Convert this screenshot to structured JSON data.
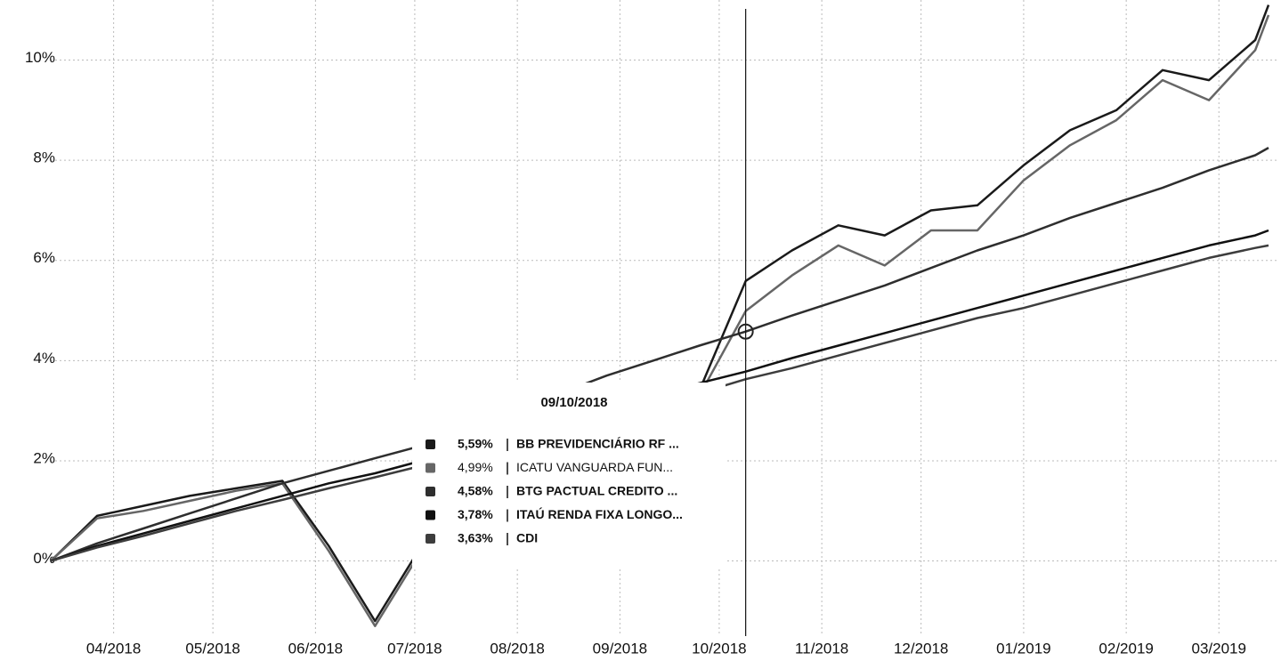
{
  "chart_data": {
    "type": "line",
    "x": [
      "13/03/2018",
      "27/03/2018",
      "10/04/2018",
      "24/04/2018",
      "08/05/2018",
      "22/05/2018",
      "05/06/2018",
      "19/06/2018",
      "03/07/2018",
      "17/07/2018",
      "31/07/2018",
      "14/08/2018",
      "28/08/2018",
      "11/09/2018",
      "25/09/2018",
      "09/10/2018",
      "23/10/2018",
      "06/11/2018",
      "20/11/2018",
      "04/12/2018",
      "18/12/2018",
      "01/01/2019",
      "15/01/2019",
      "29/01/2019",
      "12/02/2019",
      "26/02/2019",
      "12/03/2019",
      "16/03/2019"
    ],
    "series": [
      {
        "name": "BB PREVIDENCIÁRIO RF ...",
        "color": "#1a1a1a",
        "values": [
          0,
          0.9,
          1.1,
          1.3,
          1.45,
          1.6,
          0.3,
          -1.2,
          0.3,
          1.0,
          1.8,
          1.5,
          2.0,
          2.6,
          3.4,
          5.59,
          6.2,
          6.7,
          6.5,
          7.0,
          7.1,
          7.9,
          8.6,
          9.0,
          9.8,
          9.6,
          10.4,
          11.1
        ]
      },
      {
        "name": "ICATU VANGUARDA FUN...",
        "color": "#666666",
        "values": [
          0,
          0.85,
          1.0,
          1.2,
          1.4,
          1.55,
          0.2,
          -1.3,
          0.2,
          0.9,
          1.6,
          1.3,
          1.8,
          2.4,
          3.3,
          4.99,
          5.7,
          6.3,
          5.9,
          6.6,
          6.6,
          7.6,
          8.3,
          8.8,
          9.6,
          9.2,
          10.2,
          10.9
        ]
      },
      {
        "name": "BTG PACTUAL CREDITO ...",
        "color": "#2e2e2e",
        "values": [
          0,
          0.35,
          0.65,
          0.95,
          1.25,
          1.55,
          1.8,
          2.05,
          2.3,
          2.65,
          3.0,
          3.35,
          3.7,
          4.0,
          4.3,
          4.58,
          4.9,
          5.2,
          5.5,
          5.85,
          6.2,
          6.5,
          6.85,
          7.15,
          7.45,
          7.8,
          8.1,
          8.25
        ]
      },
      {
        "name": "ITAÚ RENDA FIXA LONGO...",
        "color": "#111111",
        "values": [
          0,
          0.3,
          0.55,
          0.8,
          1.05,
          1.3,
          1.55,
          1.75,
          2.0,
          2.25,
          2.5,
          2.8,
          3.05,
          3.3,
          3.55,
          3.78,
          4.05,
          4.3,
          4.55,
          4.8,
          5.05,
          5.3,
          5.55,
          5.8,
          6.05,
          6.3,
          6.5,
          6.6
        ]
      },
      {
        "name": "CDI",
        "color": "#3d3d3d",
        "values": [
          0,
          0.27,
          0.5,
          0.75,
          1.0,
          1.22,
          1.45,
          1.67,
          1.9,
          2.12,
          2.35,
          2.6,
          2.85,
          3.1,
          3.35,
          3.63,
          3.85,
          4.1,
          4.35,
          4.6,
          4.85,
          5.05,
          5.3,
          5.55,
          5.8,
          6.05,
          6.25,
          6.3
        ]
      }
    ],
    "xlim": [
      "13/03/2018",
      "16/03/2019"
    ],
    "ylim": [
      -1.5,
      11.2
    ],
    "yticks": [
      {
        "value": 0,
        "label": "0%"
      },
      {
        "value": 2,
        "label": "2%"
      },
      {
        "value": 4,
        "label": "4%"
      },
      {
        "value": 6,
        "label": "6%"
      },
      {
        "value": 8,
        "label": "8%"
      },
      {
        "value": 10,
        "label": "10%"
      }
    ],
    "xticks": [
      {
        "value": "01/04/2018",
        "label": "04/2018"
      },
      {
        "value": "01/05/2018",
        "label": "05/2018"
      },
      {
        "value": "01/06/2018",
        "label": "06/2018"
      },
      {
        "value": "01/07/2018",
        "label": "07/2018"
      },
      {
        "value": "01/08/2018",
        "label": "08/2018"
      },
      {
        "value": "01/09/2018",
        "label": "09/2018"
      },
      {
        "value": "01/10/2018",
        "label": "10/2018"
      },
      {
        "value": "01/11/2018",
        "label": "11/2018"
      },
      {
        "value": "01/12/2018",
        "label": "12/2018"
      },
      {
        "value": "01/01/2019",
        "label": "01/2019"
      },
      {
        "value": "01/02/2019",
        "label": "02/2019"
      },
      {
        "value": "01/03/2019",
        "label": "03/2019"
      }
    ],
    "grid": true,
    "tooltip": {
      "value_labels": [
        "5,59%",
        "4,99%",
        "4,58%",
        "3,78%",
        "3,63%"
      ]
    }
  }
}
